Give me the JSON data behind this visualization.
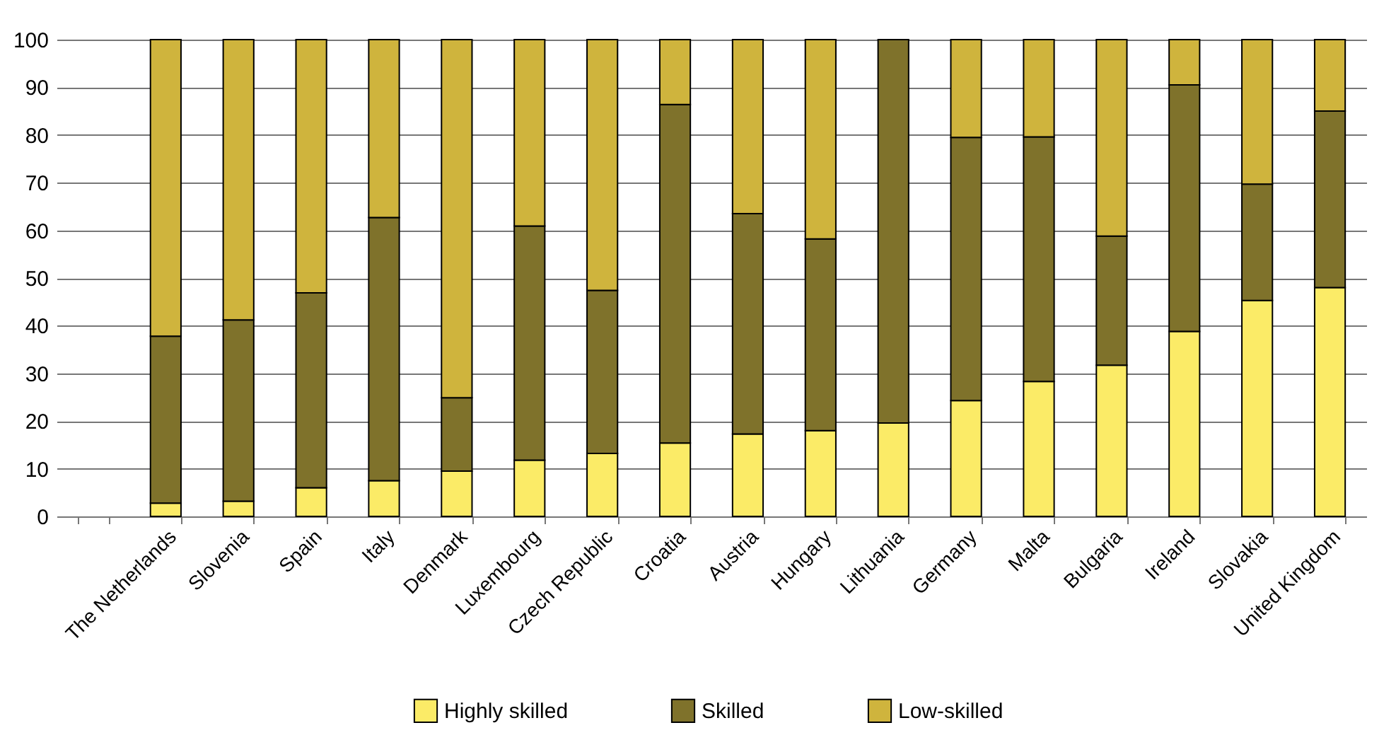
{
  "chart_data": {
    "type": "bar",
    "stacked": true,
    "categories": [
      null,
      "The Netherlands",
      "Slovenia",
      "Spain",
      "Italy",
      "Denmark",
      "Luxembourg",
      "Czech Republic",
      "Croatia",
      "Austria",
      "Hungary",
      "Lithuania",
      "Germany",
      "Malta",
      "Bulgaria",
      "Ireland",
      "Slovakia",
      "United Kingdom"
    ],
    "series": [
      {
        "name": "Highly skilled",
        "color": "#fbeb67",
        "values": [
          null,
          2.8,
          3.2,
          6.0,
          7.5,
          9.5,
          11.8,
          13.2,
          15.4,
          17.3,
          18.0,
          19.6,
          24.3,
          28.3,
          31.7,
          38.8,
          45.3,
          48.0
        ]
      },
      {
        "name": "Skilled",
        "color": "#7f722b",
        "values": [
          null,
          35.0,
          38.0,
          40.9,
          55.2,
          15.4,
          49.1,
          34.2,
          71.0,
          46.2,
          40.2,
          80.4,
          55.2,
          51.3,
          27.1,
          51.7,
          24.4,
          37.0
        ]
      },
      {
        "name": "Low-skilled",
        "color": "#cfb43d",
        "values": [
          null,
          62.2,
          58.8,
          53.1,
          37.3,
          75.1,
          39.1,
          52.6,
          13.6,
          36.5,
          41.8,
          null,
          20.5,
          20.4,
          41.2,
          9.5,
          30.3,
          15.0
        ]
      }
    ],
    "ylim": [
      0,
      100
    ],
    "yticks": [
      0,
      10,
      20,
      30,
      40,
      50,
      60,
      70,
      80,
      90,
      100
    ],
    "grid": "y",
    "legend": "bottom"
  }
}
